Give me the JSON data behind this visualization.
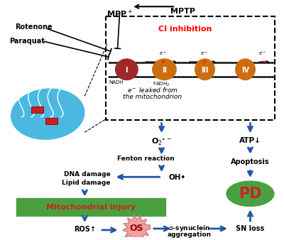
{
  "bg_color": "#ffffff",
  "mito_color": "#4ab8e0",
  "complex_colors": [
    "#a02828",
    "#cc6e10",
    "#cc6e10",
    "#cc6e10"
  ],
  "complex_labels": [
    "I",
    "II",
    "III",
    "IV"
  ],
  "arrow_color": "#2255aa",
  "mito_injury_bg": "#4aa040",
  "mito_injury_text": "#cc2222",
  "pd_bg": "#4aa040",
  "pd_text": "#cc2222",
  "os_color": "#f0a0a0",
  "os_edge": "#cc8080",
  "ci_inhibition_color": "red",
  "black": "#000000",
  "fig_w": 4.0,
  "fig_h": 3.38,
  "dpi": 100
}
